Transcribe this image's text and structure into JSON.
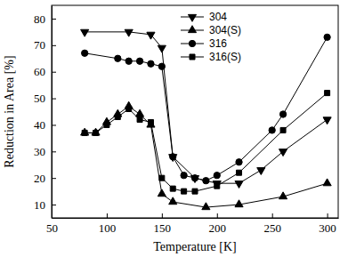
{
  "chart_data": {
    "type": "line",
    "x_label": "Temperature  [K]",
    "y_label": "Reduction in Area  [%]",
    "xlim": [
      50,
      310
    ],
    "xticks": [
      50,
      100,
      150,
      200,
      250,
      300
    ],
    "ylim": [
      5,
      85
    ],
    "yticks": [
      10,
      20,
      30,
      40,
      50,
      60,
      70,
      80
    ],
    "grid": false,
    "legend": "upper right",
    "series": [
      {
        "name": "304",
        "color": "#000000",
        "marker": "triangle-down",
        "line_style": "solid",
        "x": [
          80,
          120,
          140,
          150,
          160,
          180,
          200,
          220,
          240,
          260,
          300
        ],
        "values": [
          75,
          75,
          74,
          69,
          28,
          20,
          18,
          18,
          23,
          30,
          42
        ]
      },
      {
        "name": "304(S)",
        "color": "#000000",
        "marker": "triangle-up",
        "line_style": "solid",
        "x": [
          80,
          90,
          100,
          110,
          120,
          130,
          140,
          150,
          160,
          190,
          220,
          260,
          300
        ],
        "values": [
          37,
          37,
          41,
          44,
          47,
          44,
          40,
          14,
          11,
          9,
          10,
          13,
          18
        ]
      },
      {
        "name": "316",
        "color": "#000000",
        "marker": "circle",
        "line_style": "solid",
        "x": [
          80,
          110,
          120,
          130,
          140,
          150,
          160,
          170,
          180,
          190,
          200,
          220,
          250,
          260,
          300
        ],
        "values": [
          67,
          65,
          64,
          64,
          63,
          62,
          28,
          21,
          20,
          19,
          21,
          26,
          38,
          44,
          73
        ]
      },
      {
        "name": "316(S)",
        "color": "#000000",
        "marker": "square",
        "line_style": "solid",
        "x": [
          80,
          90,
          100,
          110,
          120,
          130,
          140,
          150,
          160,
          170,
          180,
          200,
          220,
          260,
          300
        ],
        "values": [
          37,
          37,
          40,
          43,
          46,
          42,
          41,
          20,
          16,
          15,
          15,
          17,
          22,
          38,
          52
        ]
      }
    ]
  }
}
